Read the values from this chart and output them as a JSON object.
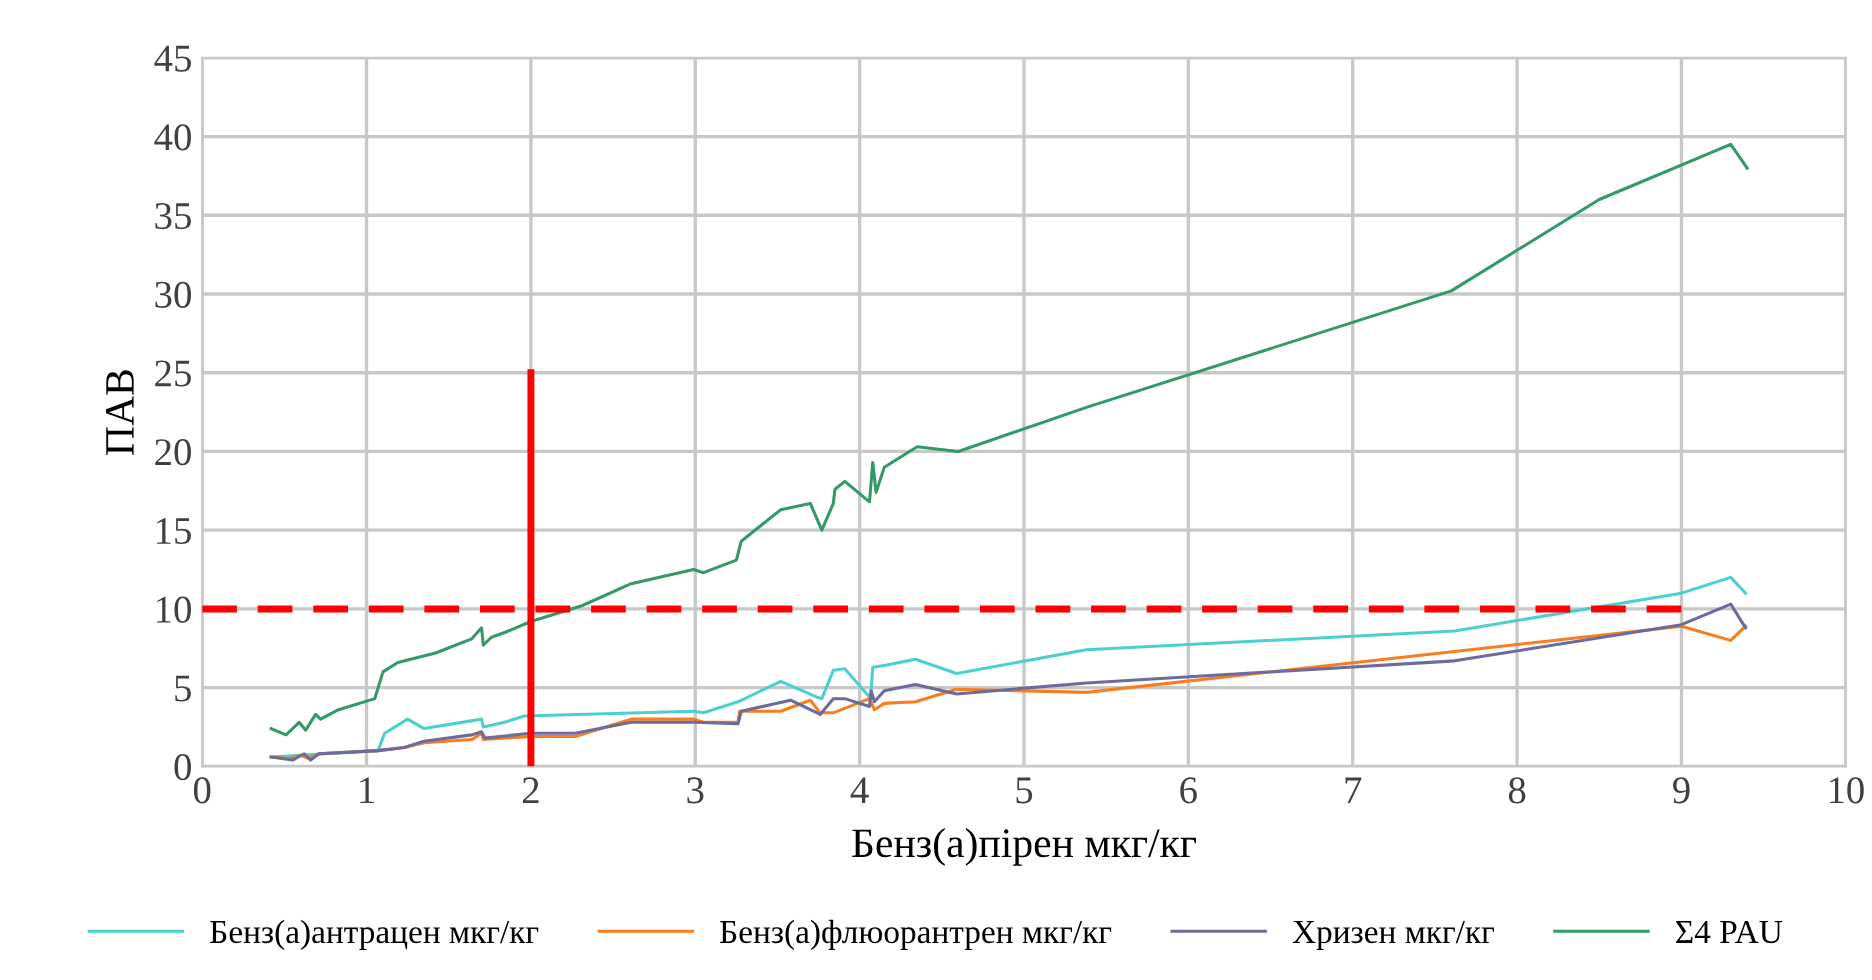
{
  "chart_data": {
    "type": "line",
    "xlabel": "Бенз(а)пірен мкг/кг",
    "ylabel": "ПАВ",
    "xlim": [
      0,
      10
    ],
    "xticks": [
      0,
      1,
      2,
      3,
      4,
      5,
      6,
      7,
      8,
      9,
      10
    ],
    "ylim": [
      0,
      45
    ],
    "yticks": [
      0,
      5,
      10,
      15,
      20,
      25,
      30,
      35,
      40,
      45
    ],
    "grid": true,
    "legend": "bottom",
    "marker": "none",
    "series": [
      {
        "name": "Бенз(а)антрацен мкг/кг",
        "color": "#4bcfcf",
        "x": [
          0.42,
          1.07,
          1.11,
          1.25,
          1.35,
          1.7,
          1.71,
          1.84,
          1.96,
          2.99,
          3.05,
          3.26,
          3.52,
          3.74,
          3.77,
          3.84,
          3.91,
          4.06,
          4.07,
          4.08,
          4.15,
          4.34,
          4.59,
          5.38,
          7.62,
          9.0,
          9.3,
          9.39
        ],
        "values": [
          0.6,
          1.0,
          2.1,
          3.0,
          2.4,
          3.0,
          2.5,
          2.8,
          3.2,
          3.5,
          3.4,
          4.1,
          5.4,
          4.4,
          4.3,
          6.1,
          6.2,
          4.4,
          4.8,
          6.3,
          6.4,
          6.8,
          5.9,
          7.4,
          8.6,
          11.0,
          12.0,
          11.0
        ]
      },
      {
        "name": "Бенз(а)флюорантрен мкг/кг",
        "color": "#f97d1c",
        "x": [
          0.42,
          0.53,
          0.6,
          0.65,
          0.71,
          1.07,
          1.23,
          1.35,
          1.64,
          1.7,
          1.71,
          2.0,
          2.27,
          2.61,
          2.99,
          3.05,
          3.26,
          3.27,
          3.52,
          3.7,
          3.76,
          3.84,
          4.06,
          4.09,
          4.15,
          4.34,
          4.59,
          5.38,
          7.62,
          9.0,
          9.3,
          9.39
        ],
        "values": [
          0.6,
          0.5,
          0.7,
          0.5,
          0.8,
          1.0,
          1.2,
          1.5,
          1.7,
          2.1,
          1.7,
          1.9,
          1.9,
          3.0,
          3.0,
          2.8,
          2.8,
          3.5,
          3.5,
          4.2,
          3.4,
          3.4,
          4.3,
          3.6,
          4.0,
          4.1,
          4.9,
          4.7,
          7.3,
          8.9,
          8.0,
          8.9
        ]
      },
      {
        "name": "Хризен мкг/кг",
        "color": "#6b6b9e",
        "x": [
          0.42,
          0.55,
          0.62,
          0.66,
          0.71,
          1.07,
          1.23,
          1.35,
          1.64,
          1.7,
          1.72,
          2.0,
          2.27,
          2.61,
          2.99,
          3.26,
          3.28,
          3.58,
          3.76,
          3.84,
          3.91,
          4.06,
          4.07,
          4.09,
          4.15,
          4.34,
          4.59,
          5.38,
          7.62,
          9.0,
          9.3,
          9.39
        ],
        "values": [
          0.6,
          0.4,
          0.8,
          0.4,
          0.8,
          1.0,
          1.2,
          1.6,
          2.0,
          2.2,
          1.8,
          2.1,
          2.1,
          2.8,
          2.8,
          2.7,
          3.5,
          4.2,
          3.3,
          4.3,
          4.3,
          3.8,
          4.8,
          4.1,
          4.8,
          5.2,
          4.6,
          5.3,
          6.7,
          9.0,
          10.3,
          8.8
        ]
      },
      {
        "name": "Σ4 PAU",
        "color": "#339966",
        "x": [
          0.42,
          0.51,
          0.59,
          0.63,
          0.69,
          0.72,
          0.83,
          1.05,
          1.1,
          1.19,
          1.42,
          1.64,
          1.7,
          1.71,
          1.76,
          1.84,
          2.0,
          2.31,
          2.61,
          2.99,
          3.05,
          3.25,
          3.28,
          3.52,
          3.7,
          3.77,
          3.84,
          3.85,
          3.91,
          4.06,
          4.08,
          4.1,
          4.15,
          4.35,
          4.6,
          5.38,
          7.6,
          8.5,
          9.3,
          9.4
        ],
        "values": [
          2.4,
          2.0,
          2.8,
          2.3,
          3.3,
          3.0,
          3.6,
          4.3,
          6.0,
          6.6,
          7.2,
          8.1,
          8.8,
          7.7,
          8.2,
          8.5,
          9.2,
          10.2,
          11.6,
          12.5,
          12.3,
          13.1,
          14.3,
          16.3,
          16.7,
          15.0,
          16.7,
          17.6,
          18.1,
          16.8,
          19.3,
          17.4,
          19.0,
          20.3,
          20.0,
          22.8,
          30.2,
          36.0,
          39.5,
          38.0
        ]
      },
      {
        "color": "#ff0000",
        "x": [
          2,
          2
        ],
        "values": [
          0,
          25
        ],
        "line_style": "solid"
      },
      {
        "color": "#ff0000",
        "x": [
          0,
          9
        ],
        "values": [
          10,
          10
        ],
        "line_style": "dashed"
      }
    ]
  }
}
